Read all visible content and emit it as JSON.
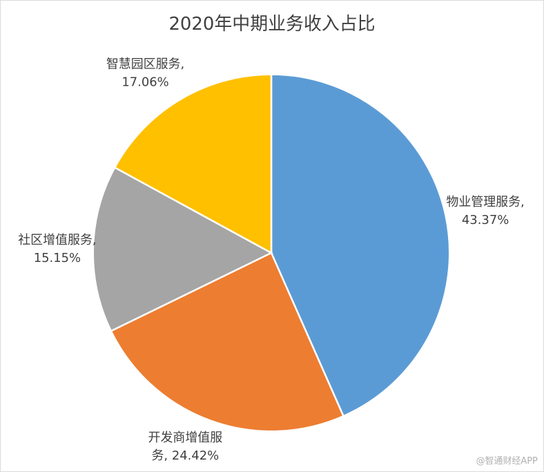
{
  "chart_data": {
    "type": "pie",
    "title": "2020年中期业务收入占比",
    "slices": [
      {
        "name": "物业管理服务",
        "value": 43.37,
        "value_label": "43.37%",
        "color": "#5B9BD5",
        "label_lines": [
          "物业管理服务,",
          "43.37%"
        ]
      },
      {
        "name": "开发商增值服务",
        "value": 24.42,
        "value_label": "24.42%",
        "color": "#ED7D31",
        "label_lines": [
          "开发商增值服",
          "务, 24.42%"
        ]
      },
      {
        "name": "社区增值服务",
        "value": 15.15,
        "value_label": "15.15%",
        "color": "#A5A5A5",
        "label_lines": [
          "社区增值服务,",
          "15.15%"
        ]
      },
      {
        "name": "智慧园区服务",
        "value": 17.06,
        "value_label": "17.06%",
        "color": "#FFC000",
        "label_lines": [
          "智慧园区服务,",
          "17.06%"
        ]
      }
    ],
    "start_angle_deg": 0,
    "direction": "clockwise",
    "legend": "none"
  },
  "watermark": "@智通财经APP"
}
